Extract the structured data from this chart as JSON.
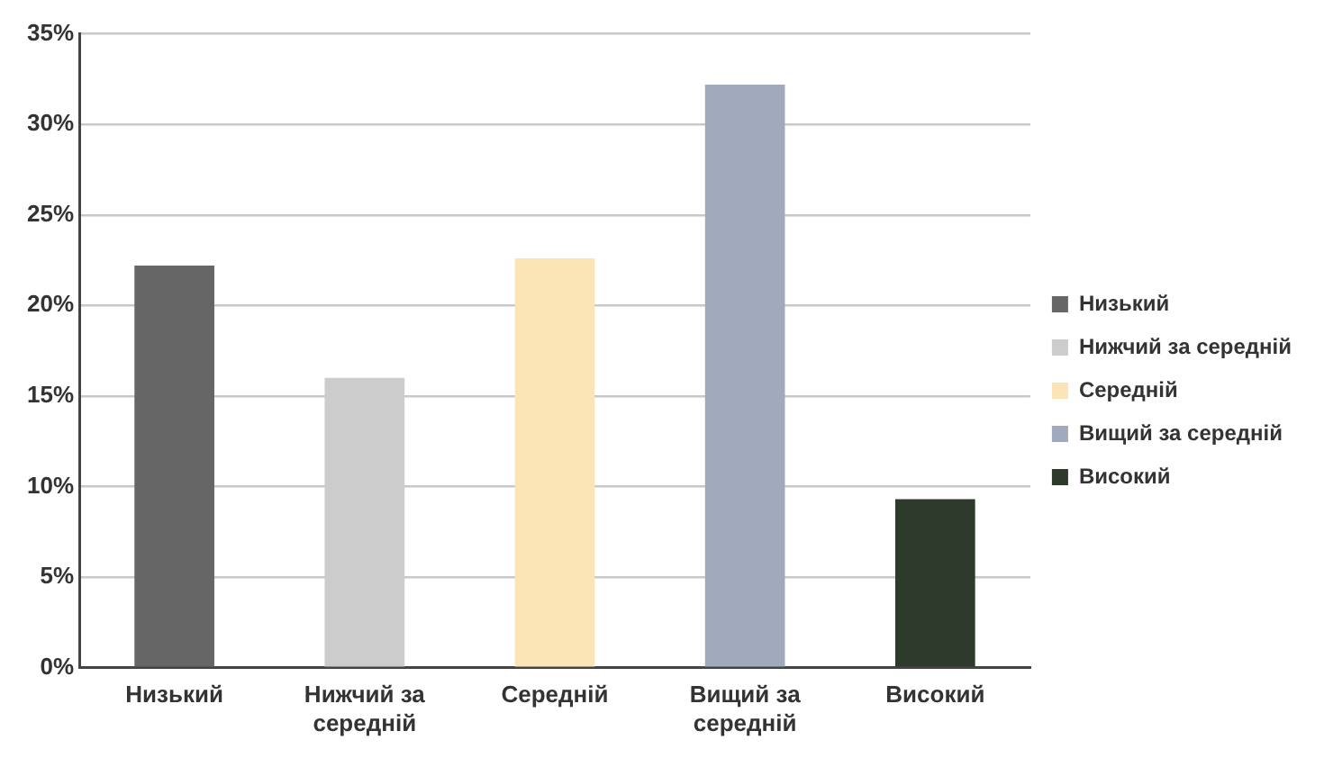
{
  "chart_data": {
    "type": "bar",
    "categories": [
      "Низький",
      "Нижчий за середній",
      "Середній",
      "Вищий за середній",
      "Високий"
    ],
    "series": [
      {
        "name": "Низький",
        "color": "#666666",
        "values": [
          22.2,
          null,
          null,
          null,
          null
        ]
      },
      {
        "name": "Нижчий за середній",
        "color": "#cccccc",
        "values": [
          null,
          16.0,
          null,
          null,
          null
        ]
      },
      {
        "name": "Середній",
        "color": "#fbe5b6",
        "values": [
          null,
          null,
          22.6,
          null,
          null
        ]
      },
      {
        "name": "Вищий за середній",
        "color": "#a1a9bc",
        "values": [
          null,
          null,
          null,
          32.2,
          null
        ]
      },
      {
        "name": "Високий",
        "color": "#2e3a2b",
        "values": [
          null,
          null,
          null,
          null,
          9.3
        ]
      }
    ],
    "ylim": [
      0,
      35
    ],
    "yticks": [
      {
        "value": 0,
        "label": "0%"
      },
      {
        "value": 5,
        "label": "5%"
      },
      {
        "value": 10,
        "label": "10%"
      },
      {
        "value": 15,
        "label": "15%"
      },
      {
        "value": 20,
        "label": "20%"
      },
      {
        "value": 25,
        "label": "25%"
      },
      {
        "value": 30,
        "label": "30%"
      },
      {
        "value": 35,
        "label": "35%"
      }
    ],
    "grid": "y",
    "legend": "right"
  }
}
